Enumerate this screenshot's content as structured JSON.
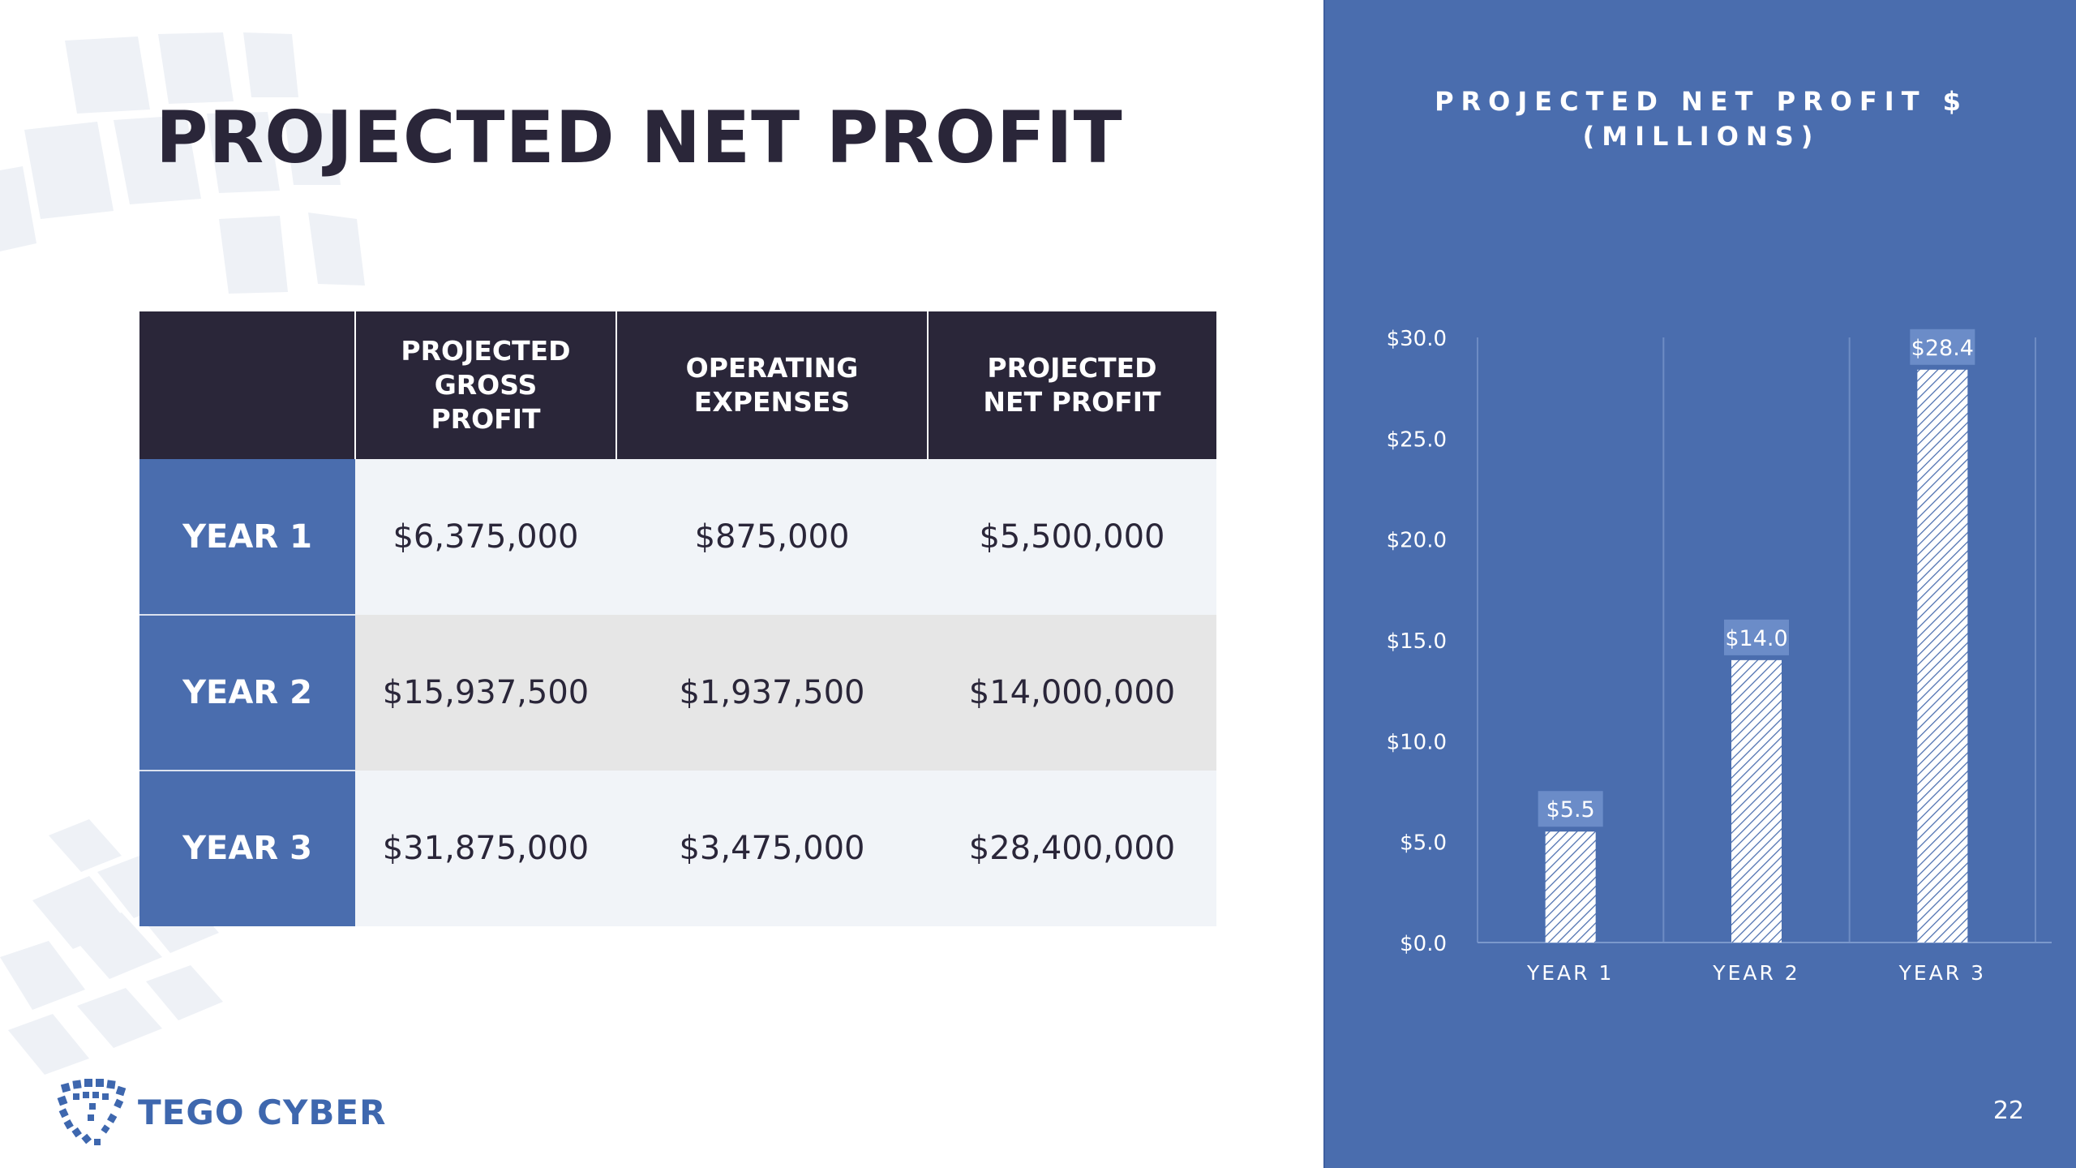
{
  "slide": {
    "title": "PROJECTED NET PROFIT",
    "page_number": "22",
    "logo_text": "TEGO CYBER"
  },
  "table": {
    "columns": [
      "",
      "PROJECTED GROSS PROFIT",
      "OPERATING EXPENSES",
      "PROJECTED NET PROFIT"
    ],
    "rows": [
      {
        "label": "YEAR 1",
        "gross": "$6,375,000",
        "expenses": "$875,000",
        "net": "$5,500,000"
      },
      {
        "label": "YEAR 2",
        "gross": "$15,937,500",
        "expenses": "$1,937,500",
        "net": "$14,000,000"
      },
      {
        "label": "YEAR 3",
        "gross": "$31,875,000",
        "expenses": "$3,475,000",
        "net": "$28,400,000"
      }
    ]
  },
  "colors": {
    "navy": "#2a2639",
    "accent_blue": "#4a6dae",
    "row_light": "#f1f4f8",
    "row_gray": "#e6e6e6"
  },
  "chart_data": {
    "type": "bar",
    "title": "PROJECTED NET PROFIT $ (MILLIONS)",
    "categories": [
      "YEAR 1",
      "YEAR 2",
      "YEAR 3"
    ],
    "values": [
      5.5,
      14.0,
      28.4
    ],
    "data_labels": [
      "$5.5",
      "$14.0",
      "$28.4"
    ],
    "yticks": [
      "$0.0",
      "$5.0",
      "$10.0",
      "$15.0",
      "$20.0",
      "$25.0",
      "$30.0"
    ],
    "ylim": [
      0,
      30
    ],
    "xlabel": "",
    "ylabel": "",
    "legend": "none",
    "bar_fill": "diagonal-hatch"
  }
}
